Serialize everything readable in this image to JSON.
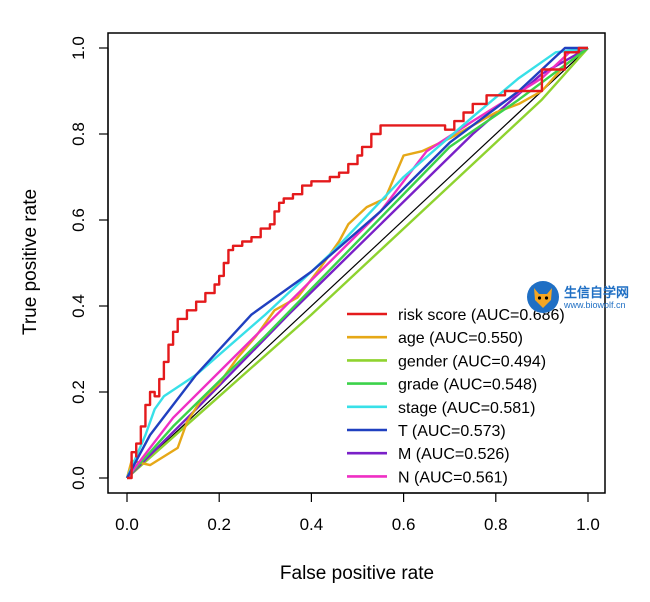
{
  "chart_data": {
    "type": "line",
    "xlabel": "False positive rate",
    "ylabel": "True positive rate",
    "xlim": [
      0,
      1
    ],
    "ylim": [
      0,
      1
    ],
    "xticks": [
      "0.0",
      "0.2",
      "0.4",
      "0.6",
      "0.8",
      "1.0"
    ],
    "yticks": [
      "0.0",
      "0.2",
      "0.4",
      "0.6",
      "0.8",
      "1.0"
    ],
    "grid": false,
    "legend_position": "bottom-right",
    "reference_line": {
      "color": "#000000",
      "points": [
        [
          0,
          0
        ],
        [
          1,
          1
        ]
      ]
    },
    "series": [
      {
        "name": "risk score (AUC=0.686)",
        "color": "#e41a1c",
        "points": [
          [
            0,
            0
          ],
          [
            0.01,
            0.02
          ],
          [
            0.01,
            0.06
          ],
          [
            0.02,
            0.05
          ],
          [
            0.02,
            0.08
          ],
          [
            0.03,
            0.09
          ],
          [
            0.03,
            0.12
          ],
          [
            0.04,
            0.14
          ],
          [
            0.04,
            0.17
          ],
          [
            0.05,
            0.2
          ],
          [
            0.06,
            0.19
          ],
          [
            0.07,
            0.23
          ],
          [
            0.08,
            0.27
          ],
          [
            0.09,
            0.31
          ],
          [
            0.1,
            0.34
          ],
          [
            0.11,
            0.37
          ],
          [
            0.13,
            0.39
          ],
          [
            0.15,
            0.41
          ],
          [
            0.17,
            0.43
          ],
          [
            0.19,
            0.45
          ],
          [
            0.2,
            0.47
          ],
          [
            0.21,
            0.5
          ],
          [
            0.22,
            0.53
          ],
          [
            0.23,
            0.54
          ],
          [
            0.25,
            0.55
          ],
          [
            0.27,
            0.56
          ],
          [
            0.29,
            0.58
          ],
          [
            0.31,
            0.59
          ],
          [
            0.32,
            0.62
          ],
          [
            0.33,
            0.64
          ],
          [
            0.34,
            0.65
          ],
          [
            0.36,
            0.66
          ],
          [
            0.38,
            0.68
          ],
          [
            0.4,
            0.69
          ],
          [
            0.42,
            0.69
          ],
          [
            0.44,
            0.7
          ],
          [
            0.46,
            0.71
          ],
          [
            0.48,
            0.73
          ],
          [
            0.5,
            0.75
          ],
          [
            0.51,
            0.77
          ],
          [
            0.53,
            0.8
          ],
          [
            0.55,
            0.82
          ],
          [
            0.6,
            0.82
          ],
          [
            0.65,
            0.82
          ],
          [
            0.69,
            0.81
          ],
          [
            0.71,
            0.83
          ],
          [
            0.73,
            0.85
          ],
          [
            0.75,
            0.87
          ],
          [
            0.78,
            0.89
          ],
          [
            0.82,
            0.9
          ],
          [
            0.86,
            0.9
          ],
          [
            0.9,
            0.95
          ],
          [
            0.95,
            0.99
          ],
          [
            0.98,
            1.0
          ],
          [
            1,
            1
          ]
        ]
      },
      {
        "name": "age (AUC=0.550)",
        "color": "#e6a817",
        "points": [
          [
            0,
            0
          ],
          [
            0.01,
            0.04
          ],
          [
            0.05,
            0.03
          ],
          [
            0.08,
            0.05
          ],
          [
            0.11,
            0.07
          ],
          [
            0.13,
            0.13
          ],
          [
            0.16,
            0.18
          ],
          [
            0.2,
            0.22
          ],
          [
            0.24,
            0.28
          ],
          [
            0.28,
            0.33
          ],
          [
            0.32,
            0.39
          ],
          [
            0.37,
            0.42
          ],
          [
            0.42,
            0.49
          ],
          [
            0.46,
            0.55
          ],
          [
            0.48,
            0.59
          ],
          [
            0.52,
            0.63
          ],
          [
            0.56,
            0.65
          ],
          [
            0.6,
            0.75
          ],
          [
            0.64,
            0.76
          ],
          [
            0.7,
            0.79
          ],
          [
            0.75,
            0.82
          ],
          [
            0.8,
            0.85
          ],
          [
            0.85,
            0.87
          ],
          [
            0.9,
            0.9
          ],
          [
            0.95,
            0.96
          ],
          [
            1,
            1
          ]
        ]
      },
      {
        "name": "gender (AUC=0.494)",
        "color": "#8fd32f",
        "points": [
          [
            0,
            0
          ],
          [
            0.2,
            0.19
          ],
          [
            0.4,
            0.38
          ],
          [
            0.6,
            0.58
          ],
          [
            0.8,
            0.78
          ],
          [
            0.9,
            0.88
          ],
          [
            1,
            1
          ]
        ]
      },
      {
        "name": "grade (AUC=0.548)",
        "color": "#3cd24a",
        "points": [
          [
            0,
            0
          ],
          [
            0.1,
            0.12
          ],
          [
            0.3,
            0.33
          ],
          [
            0.5,
            0.55
          ],
          [
            0.7,
            0.77
          ],
          [
            0.85,
            0.88
          ],
          [
            1,
            1
          ]
        ]
      },
      {
        "name": "stage (AUC=0.581)",
        "color": "#38e0e8",
        "points": [
          [
            0,
            0
          ],
          [
            0.04,
            0.1
          ],
          [
            0.06,
            0.16
          ],
          [
            0.08,
            0.19
          ],
          [
            0.15,
            0.24
          ],
          [
            0.3,
            0.38
          ],
          [
            0.45,
            0.53
          ],
          [
            0.6,
            0.7
          ],
          [
            0.75,
            0.84
          ],
          [
            0.85,
            0.93
          ],
          [
            0.93,
            0.99
          ],
          [
            1,
            1
          ]
        ]
      },
      {
        "name": "T (AUC=0.573)",
        "color": "#2040c0",
        "points": [
          [
            0,
            0
          ],
          [
            0.05,
            0.1
          ],
          [
            0.15,
            0.24
          ],
          [
            0.27,
            0.38
          ],
          [
            0.4,
            0.48
          ],
          [
            0.55,
            0.62
          ],
          [
            0.7,
            0.78
          ],
          [
            0.85,
            0.9
          ],
          [
            0.95,
            1.0
          ],
          [
            1,
            1
          ]
        ]
      },
      {
        "name": "M (AUC=0.526)",
        "color": "#7a20c8",
        "points": [
          [
            0,
            0
          ],
          [
            0.15,
            0.16
          ],
          [
            0.35,
            0.38
          ],
          [
            0.55,
            0.59
          ],
          [
            0.75,
            0.8
          ],
          [
            0.9,
            0.94
          ],
          [
            1,
            1
          ]
        ]
      },
      {
        "name": "N (AUC=0.561)",
        "color": "#ef2fc4",
        "points": [
          [
            0,
            0
          ],
          [
            0.1,
            0.14
          ],
          [
            0.25,
            0.3
          ],
          [
            0.4,
            0.46
          ],
          [
            0.55,
            0.62
          ],
          [
            0.65,
            0.76
          ],
          [
            0.75,
            0.83
          ],
          [
            0.9,
            0.93
          ],
          [
            0.96,
            0.99
          ],
          [
            1,
            1
          ]
        ]
      }
    ]
  },
  "watermark": {
    "title": "生信自学网",
    "subtitle": "www.biowolf.cn",
    "icon": "wolf-logo-icon"
  }
}
